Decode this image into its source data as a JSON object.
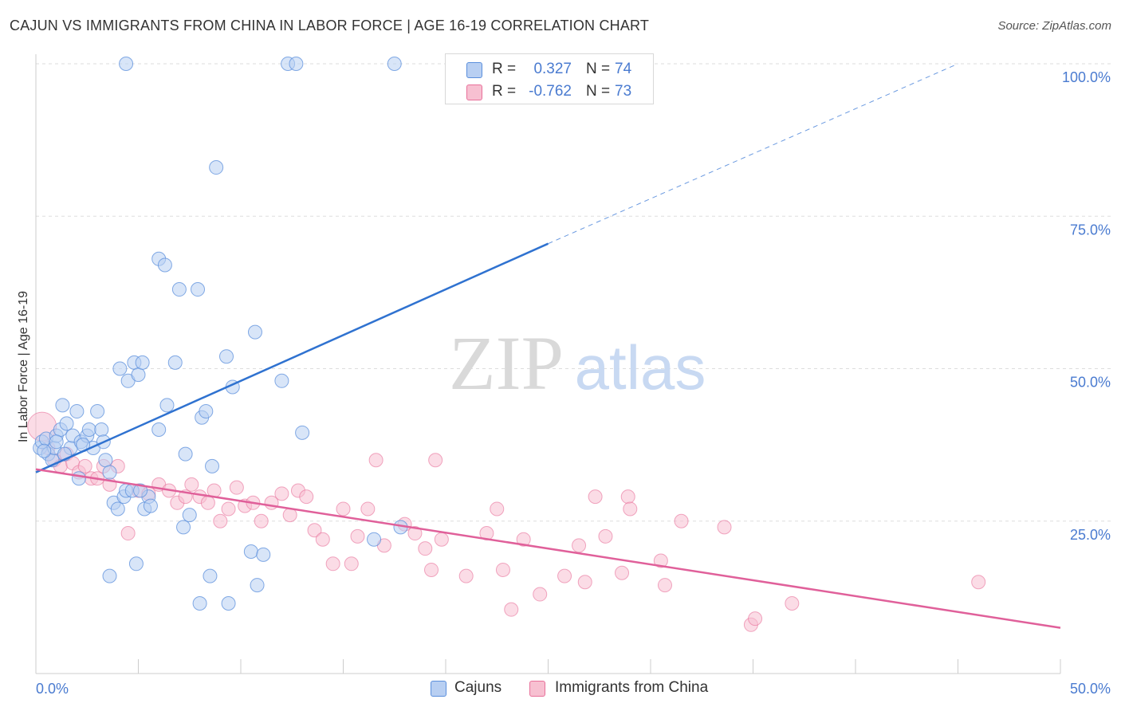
{
  "title": "CAJUN VS IMMIGRANTS FROM CHINA IN LABOR FORCE | AGE 16-19 CORRELATION CHART",
  "source": "Source: ZipAtlas.com",
  "watermark": {
    "zip": "ZIP",
    "atlas": "atlas"
  },
  "colors": {
    "blue": "#5b8fdc",
    "blue_fill": "#b8cff2",
    "pink": "#e8709a",
    "pink_fill": "#f7c0d1",
    "tick": "#4a7bd0"
  },
  "legend": {
    "rows": [
      {
        "r_label": "R =",
        "r_value": "0.327",
        "n_label": "N =",
        "n_value": "74"
      },
      {
        "r_label": "R =",
        "r_value": "-0.762",
        "n_label": "N =",
        "n_value": "73"
      }
    ]
  },
  "bottom_legend": {
    "series1": "Cajuns",
    "series2": "Immigrants from China"
  },
  "chart_data": {
    "type": "scatter",
    "title": "CAJUN VS IMMIGRANTS FROM CHINA IN LABOR FORCE | AGE 16-19 CORRELATION CHART",
    "xlabel": "",
    "ylabel": "In Labor Force | Age 16-19",
    "xlim": [
      0,
      50
    ],
    "ylim": [
      0,
      100
    ],
    "x_tick_labels": [
      "0.0%",
      "50.0%"
    ],
    "y_tick_labels": [
      "25.0%",
      "50.0%",
      "75.0%",
      "100.0%"
    ],
    "y_ticks": [
      25,
      50,
      75,
      100
    ],
    "grid": true,
    "legend_position": "top-center",
    "series": [
      {
        "name": "Cajuns",
        "color": "#5b8fdc",
        "trend": {
          "x0": 0,
          "y0": 33,
          "x1": 25,
          "y1": 70.5,
          "dash_x1": 45,
          "dash_y1": 100
        },
        "points": [
          [
            0.2,
            37
          ],
          [
            0.3,
            38
          ],
          [
            0.5,
            38.5
          ],
          [
            0.6,
            36
          ],
          [
            0.8,
            35
          ],
          [
            0.9,
            37
          ],
          [
            1.0,
            39
          ],
          [
            1.2,
            40
          ],
          [
            1.3,
            44
          ],
          [
            1.5,
            41
          ],
          [
            1.7,
            37
          ],
          [
            1.8,
            39
          ],
          [
            2.0,
            43
          ],
          [
            2.2,
            38
          ],
          [
            2.5,
            39
          ],
          [
            2.6,
            40
          ],
          [
            2.8,
            37
          ],
          [
            3.0,
            43
          ],
          [
            3.2,
            40
          ],
          [
            3.3,
            38
          ],
          [
            3.4,
            35
          ],
          [
            3.6,
            33
          ],
          [
            2.1,
            32
          ],
          [
            3.8,
            28
          ],
          [
            4.0,
            27
          ],
          [
            4.3,
            29
          ],
          [
            4.4,
            30
          ],
          [
            4.7,
            30
          ],
          [
            4.1,
            50
          ],
          [
            4.5,
            48
          ],
          [
            4.8,
            51
          ],
          [
            5.0,
            49
          ],
          [
            5.2,
            51
          ],
          [
            5.3,
            27
          ],
          [
            5.5,
            29
          ],
          [
            5.6,
            27.5
          ],
          [
            6.0,
            40
          ],
          [
            6.4,
            44
          ],
          [
            6.8,
            51
          ],
          [
            6.0,
            68
          ],
          [
            6.3,
            67
          ],
          [
            7.0,
            63
          ],
          [
            7.2,
            24
          ],
          [
            7.3,
            36
          ],
          [
            7.5,
            26
          ],
          [
            7.9,
            63
          ],
          [
            8.1,
            42
          ],
          [
            8.3,
            43
          ],
          [
            8.6,
            34
          ],
          [
            8.8,
            83
          ],
          [
            9.3,
            52
          ],
          [
            9.6,
            47
          ],
          [
            10.7,
            56
          ],
          [
            12.0,
            48
          ],
          [
            13.0,
            39.5
          ],
          [
            4.4,
            100
          ],
          [
            12.3,
            100
          ],
          [
            12.7,
            100
          ],
          [
            17.5,
            100
          ],
          [
            3.6,
            16
          ],
          [
            4.9,
            18
          ],
          [
            8.5,
            16
          ],
          [
            10.5,
            20
          ],
          [
            11.1,
            19.5
          ],
          [
            10.8,
            14.5
          ],
          [
            8.0,
            11.5
          ],
          [
            9.4,
            11.5
          ],
          [
            16.5,
            22
          ],
          [
            17.8,
            24
          ],
          [
            0.4,
            36.5
          ],
          [
            1.4,
            36
          ],
          [
            2.3,
            37.5
          ],
          [
            5.1,
            30
          ],
          [
            1.0,
            38
          ]
        ]
      },
      {
        "name": "Immigrants from China",
        "color": "#e8709a",
        "trend": {
          "x0": 0,
          "y0": 33.5,
          "x1": 50,
          "y1": 7.5
        },
        "points": [
          [
            0.3,
            40.5
          ],
          [
            0.6,
            37
          ],
          [
            0.9,
            35
          ],
          [
            1.2,
            34
          ],
          [
            1.5,
            36
          ],
          [
            1.8,
            34.5
          ],
          [
            2.1,
            33
          ],
          [
            2.4,
            34
          ],
          [
            2.7,
            32
          ],
          [
            3.0,
            32
          ],
          [
            3.3,
            34
          ],
          [
            3.6,
            31
          ],
          [
            4.0,
            34
          ],
          [
            4.5,
            23
          ],
          [
            5.0,
            30
          ],
          [
            5.5,
            29.5
          ],
          [
            6.0,
            31
          ],
          [
            6.5,
            30
          ],
          [
            6.9,
            28
          ],
          [
            7.3,
            29
          ],
          [
            7.6,
            31
          ],
          [
            8.0,
            29
          ],
          [
            8.4,
            28
          ],
          [
            8.7,
            30
          ],
          [
            9.0,
            25
          ],
          [
            9.4,
            27
          ],
          [
            9.8,
            30.5
          ],
          [
            10.2,
            27.5
          ],
          [
            10.6,
            28
          ],
          [
            11.0,
            25
          ],
          [
            11.5,
            28
          ],
          [
            12.0,
            29.5
          ],
          [
            12.4,
            26
          ],
          [
            12.8,
            30
          ],
          [
            13.2,
            29
          ],
          [
            13.6,
            23.5
          ],
          [
            14.0,
            22
          ],
          [
            14.5,
            18
          ],
          [
            15.0,
            27
          ],
          [
            15.4,
            18
          ],
          [
            15.7,
            22.5
          ],
          [
            16.2,
            27
          ],
          [
            16.6,
            35
          ],
          [
            17.0,
            21
          ],
          [
            18.0,
            24.5
          ],
          [
            18.5,
            23
          ],
          [
            19.0,
            20.5
          ],
          [
            19.3,
            17
          ],
          [
            19.5,
            35
          ],
          [
            19.8,
            22
          ],
          [
            21.0,
            16
          ],
          [
            22.0,
            23
          ],
          [
            22.5,
            27
          ],
          [
            22.8,
            17
          ],
          [
            23.2,
            10.5
          ],
          [
            23.8,
            22
          ],
          [
            24.6,
            13
          ],
          [
            25.8,
            16
          ],
          [
            26.5,
            21
          ],
          [
            26.8,
            15
          ],
          [
            27.3,
            29
          ],
          [
            27.8,
            22.5
          ],
          [
            28.6,
            16.5
          ],
          [
            28.9,
            29
          ],
          [
            29.0,
            27
          ],
          [
            30.5,
            18.5
          ],
          [
            30.7,
            14.5
          ],
          [
            31.5,
            25
          ],
          [
            33.6,
            24
          ],
          [
            34.9,
            8
          ],
          [
            35.1,
            9
          ],
          [
            36.9,
            11.5
          ],
          [
            46.0,
            15
          ]
        ]
      }
    ]
  }
}
